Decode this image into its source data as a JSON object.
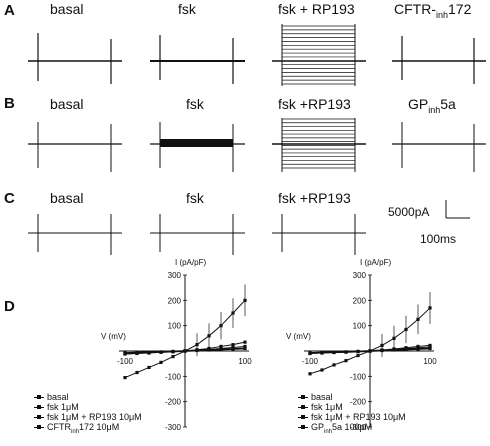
{
  "panels": {
    "A": {
      "label": "A",
      "titles": [
        "basal",
        "fsk",
        "fsk + RP193",
        "CFTR-"
      ],
      "last_title": {
        "main": "CFTR-",
        "sub": "inh",
        "tail": "172"
      }
    },
    "B": {
      "label": "B",
      "titles": [
        "basal",
        "fsk",
        "fsk +RP193"
      ],
      "last_title": {
        "main": "GP",
        "sub": "inh",
        "tail": "5a"
      }
    },
    "C": {
      "label": "C",
      "titles": [
        "basal",
        "fsk",
        "fsk +RP193"
      ]
    },
    "D": {
      "label": "D"
    }
  },
  "scale_bar": {
    "current": "5000pA",
    "time": "100ms"
  },
  "iv_plots": {
    "y_label": "I (pA/pF)",
    "x_label": "V (mV)",
    "y_ticks": [
      "300",
      "200",
      "100",
      "-100",
      "-200",
      "-300"
    ],
    "x_ticks": [
      "-100",
      "100"
    ],
    "left_legend": [
      {
        "text": "basal"
      },
      {
        "text": "fsk 1μM"
      },
      {
        "text": "fsk 1μM + RP193 10μM"
      },
      {
        "main": "CFTR",
        "sub": "inh",
        "tail": "172 10μM"
      }
    ],
    "right_legend": [
      {
        "text": "basal"
      },
      {
        "text": "fsk 1μM"
      },
      {
        "text": "fsk 1μM + RP193 10μM"
      },
      {
        "main": "GP",
        "sub": "inh",
        "tail": "5a 100pM"
      }
    ]
  },
  "chart_data": [
    {
      "type": "line",
      "title": "",
      "xlabel": "V (mV)",
      "ylabel": "I (pA/pF)",
      "xlim": [
        -100,
        100
      ],
      "ylim": [
        -300,
        300
      ],
      "x": [
        -100,
        -80,
        -60,
        -40,
        -20,
        0,
        20,
        40,
        60,
        80,
        100
      ],
      "series": [
        {
          "name": "basal",
          "values": [
            -8,
            -6,
            -5,
            -4,
            -2,
            0,
            2,
            4,
            6,
            8,
            10
          ]
        },
        {
          "name": "fsk 1μM",
          "values": [
            -105,
            -85,
            -65,
            -45,
            -22,
            0,
            25,
            60,
            100,
            150,
            200
          ]
        },
        {
          "name": "fsk 1μM + RP193 10μM",
          "values": [
            -12,
            -10,
            -8,
            -5,
            -3,
            0,
            5,
            10,
            18,
            25,
            35
          ]
        },
        {
          "name": "CFTRinh172 10μM",
          "values": [
            -8,
            -7,
            -5,
            -4,
            -2,
            0,
            3,
            6,
            10,
            14,
            18
          ]
        }
      ]
    },
    {
      "type": "line",
      "title": "",
      "xlabel": "V (mV)",
      "ylabel": "I (pA/pF)",
      "xlim": [
        -100,
        100
      ],
      "ylim": [
        -300,
        300
      ],
      "x": [
        -100,
        -80,
        -60,
        -40,
        -20,
        0,
        20,
        40,
        60,
        80,
        100
      ],
      "series": [
        {
          "name": "basal",
          "values": [
            -8,
            -6,
            -5,
            -4,
            -2,
            0,
            2,
            4,
            6,
            8,
            10
          ]
        },
        {
          "name": "fsk 1μM",
          "values": [
            -90,
            -75,
            -55,
            -38,
            -18,
            0,
            22,
            50,
            85,
            125,
            170
          ]
        },
        {
          "name": "fsk 1μM + RP193 10μM",
          "values": [
            -10,
            -8,
            -6,
            -4,
            -2,
            0,
            4,
            8,
            13,
            18,
            22
          ]
        },
        {
          "name": "GPinh5a 100pM",
          "values": [
            -9,
            -7,
            -5,
            -4,
            -2,
            0,
            3,
            6,
            9,
            13,
            16
          ]
        }
      ]
    }
  ]
}
